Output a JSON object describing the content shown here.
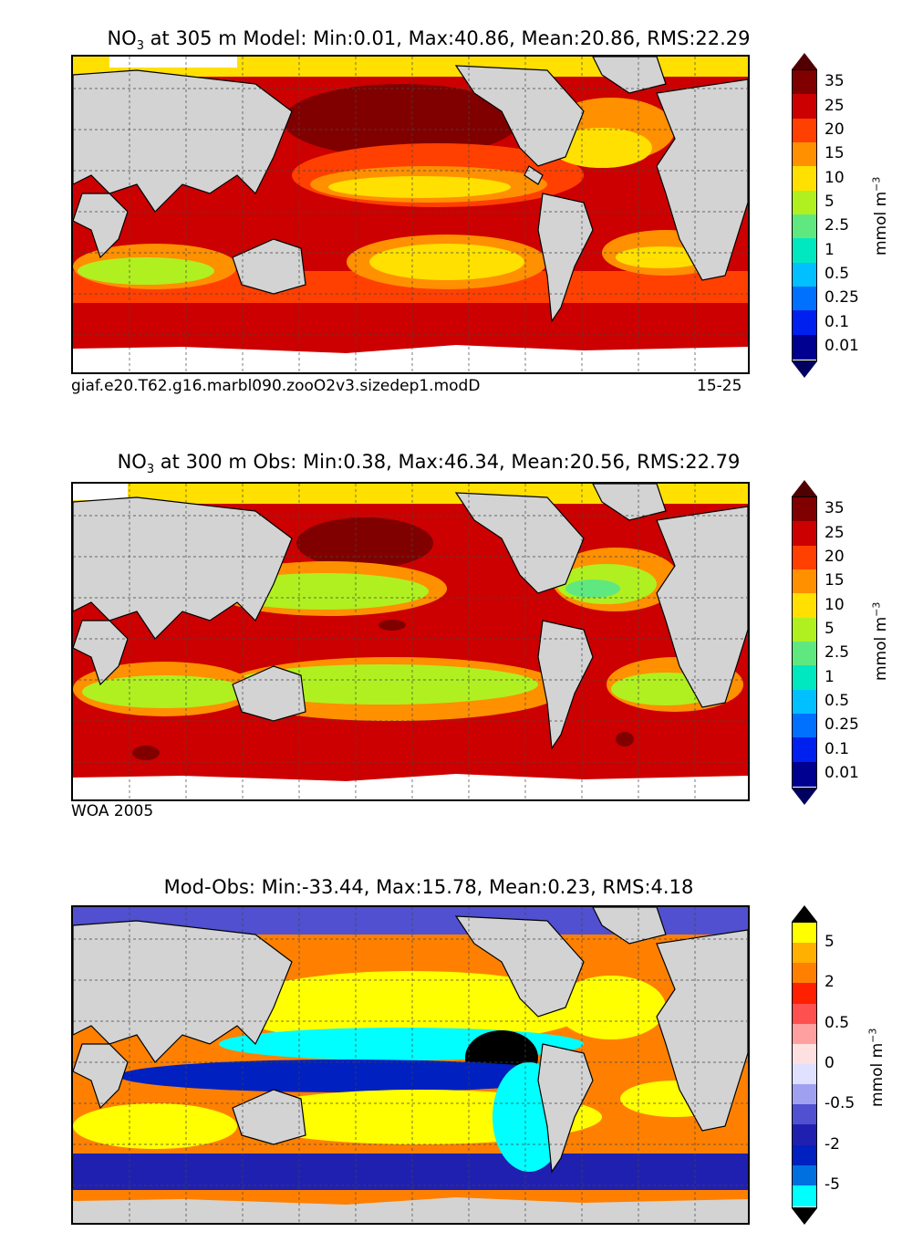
{
  "panels": [
    {
      "title_pre": "NO",
      "title_sub": "3",
      "title_post": " at 305 m Model: Min:0.01, Max:40.86, Mean:20.86, RMS:22.29",
      "caption_left": "giaf.e20.T62.g16.marbl090.zooO2v3.sizedep1.modD",
      "caption_right": "15-25",
      "colorbar": {
        "ticks": [
          "35",
          "25",
          "20",
          "15",
          "10",
          "5",
          "2.5",
          "1",
          "0.5",
          "0.25",
          "0.1",
          "0.01"
        ],
        "colors": [
          "#800000",
          "#cc0000",
          "#ff4000",
          "#ff9000",
          "#ffe000",
          "#b0f020",
          "#60e880",
          "#00e8c0",
          "#00c0ff",
          "#0070ff",
          "#0020f0",
          "#000090"
        ],
        "top_color": "#500000",
        "bottom_color": "#000060",
        "units": "mmol m",
        "units_sup": "−3"
      }
    },
    {
      "title_pre": "NO",
      "title_sub": "3",
      "title_post": " at 300 m Obs: Min:0.38, Max:46.34, Mean:20.56, RMS:22.79",
      "caption_left": "WOA 2005",
      "caption_right": "",
      "colorbar": {
        "ticks": [
          "35",
          "25",
          "20",
          "15",
          "10",
          "5",
          "2.5",
          "1",
          "0.5",
          "0.25",
          "0.1",
          "0.01"
        ],
        "colors": [
          "#800000",
          "#cc0000",
          "#ff4000",
          "#ff9000",
          "#ffe000",
          "#b0f020",
          "#60e880",
          "#00e8c0",
          "#00c0ff",
          "#0070ff",
          "#0020f0",
          "#000090"
        ],
        "top_color": "#500000",
        "bottom_color": "#000060",
        "units": "mmol m",
        "units_sup": "−3"
      }
    },
    {
      "title_pre": "Mod-Obs: Min:-33.44, Max:15.78, Mean:0.23, RMS:4.18",
      "title_sub": "",
      "title_post": "",
      "caption_left": "",
      "caption_right": "",
      "colorbar": {
        "ticks": [
          "5",
          "2",
          "0.5",
          "0",
          "-0.5",
          "-2",
          "-5"
        ],
        "colors": [
          "#ffff00",
          "#ffb000",
          "#ff8000",
          "#ff2000",
          "#ff5050",
          "#ffa0a0",
          "#ffe0e0",
          "#e0e0ff",
          "#a0a0f0",
          "#5050d0",
          "#2020b0",
          "#0020c0",
          "#0070e0",
          "#00ffff"
        ],
        "top_color": "#000000",
        "bottom_color": "#000000",
        "units": "mmol m",
        "units_sup": "−3"
      }
    }
  ],
  "chart_data": [
    {
      "type": "heatmap",
      "title": "NO3 at 305 m Model: Min:0.01, Max:40.86, Mean:20.86, RMS:22.29",
      "variable": "NO3",
      "depth_m": 305,
      "source": "Model",
      "stats": {
        "min": 0.01,
        "max": 40.86,
        "mean": 20.86,
        "rms": 22.29
      },
      "color_levels": [
        0.01,
        0.1,
        0.25,
        0.5,
        1,
        2.5,
        5,
        10,
        15,
        20,
        25,
        35
      ],
      "units": "mmol m-3",
      "case": "giaf.e20.T62.g16.marbl090.zooO2v3.sizedep1.modD",
      "years": "15-25"
    },
    {
      "type": "heatmap",
      "title": "NO3 at 300 m Obs: Min:0.38, Max:46.34, Mean:20.56, RMS:22.79",
      "variable": "NO3",
      "depth_m": 300,
      "source": "Obs",
      "stats": {
        "min": 0.38,
        "max": 46.34,
        "mean": 20.56,
        "rms": 22.79
      },
      "color_levels": [
        0.01,
        0.1,
        0.25,
        0.5,
        1,
        2.5,
        5,
        10,
        15,
        20,
        25,
        35
      ],
      "units": "mmol m-3",
      "dataset": "WOA 2005"
    },
    {
      "type": "heatmap",
      "title": "Mod-Obs: Min:-33.44, Max:15.78, Mean:0.23, RMS:4.18",
      "source": "Mod-Obs",
      "stats": {
        "min": -33.44,
        "max": 15.78,
        "mean": 0.23,
        "rms": 4.18
      },
      "color_levels": [
        -5,
        -2,
        -0.5,
        0,
        0.5,
        2,
        5
      ],
      "units": "mmol m-3"
    }
  ]
}
